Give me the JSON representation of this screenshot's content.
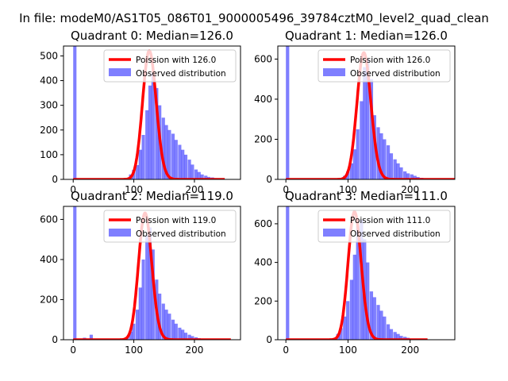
{
  "suptitle": "In file: modeM0/AS1T05_086T01_9000005496_39784cztM0_level2_quad_clean",
  "colors": {
    "poisson": "#ff0000",
    "observed": "#0000ff",
    "axis": "#000000"
  },
  "chart_data": [
    {
      "type": "bar",
      "title": "Quadrant 0: Median=126.0",
      "xlim": [
        -16,
        276
      ],
      "ylim": [
        0,
        540
      ],
      "xticks": [
        0,
        100,
        200
      ],
      "yticks": [
        0,
        100,
        200,
        300,
        400,
        500
      ],
      "legend_position": "upper right",
      "legend": [
        "Poission with 126.0",
        "Observed distribution"
      ],
      "bin_width": 5.4,
      "hist_bins": [
        [
          0,
          540
        ],
        [
          81,
          2
        ],
        [
          86,
          5
        ],
        [
          92,
          20
        ],
        [
          97,
          38
        ],
        [
          103,
          58
        ],
        [
          108,
          120
        ],
        [
          113,
          180
        ],
        [
          119,
          280
        ],
        [
          124,
          380
        ],
        [
          129,
          430
        ],
        [
          135,
          370
        ],
        [
          140,
          300
        ],
        [
          146,
          250
        ],
        [
          151,
          220
        ],
        [
          156,
          200
        ],
        [
          162,
          185
        ],
        [
          167,
          160
        ],
        [
          173,
          140
        ],
        [
          178,
          120
        ],
        [
          183,
          100
        ],
        [
          189,
          80
        ],
        [
          194,
          60
        ],
        [
          200,
          40
        ],
        [
          205,
          30
        ],
        [
          210,
          20
        ],
        [
          216,
          15
        ],
        [
          221,
          10
        ],
        [
          227,
          8
        ],
        [
          232,
          5
        ],
        [
          238,
          3
        ]
      ],
      "poisson": {
        "mu": 126.0,
        "scale": 521,
        "x_range": [
          0,
          250
        ]
      }
    },
    {
      "type": "bar",
      "title": "Quadrant 1: Median=126.0",
      "xlim": [
        -13,
        272
      ],
      "ylim": [
        0,
        665
      ],
      "xticks": [
        0,
        100,
        200
      ],
      "yticks": [
        0,
        200,
        400,
        600
      ],
      "legend_position": "upper right",
      "legend": [
        "Poission with 126.0",
        "Observed distribution"
      ],
      "bin_width": 5.4,
      "hist_bins": [
        [
          0,
          665
        ],
        [
          86,
          5
        ],
        [
          92,
          18
        ],
        [
          97,
          40
        ],
        [
          103,
          80
        ],
        [
          108,
          150
        ],
        [
          113,
          250
        ],
        [
          119,
          390
        ],
        [
          124,
          560
        ],
        [
          129,
          600
        ],
        [
          135,
          500
        ],
        [
          140,
          320
        ],
        [
          146,
          260
        ],
        [
          151,
          230
        ],
        [
          156,
          200
        ],
        [
          162,
          170
        ],
        [
          167,
          130
        ],
        [
          173,
          100
        ],
        [
          178,
          80
        ],
        [
          183,
          60
        ],
        [
          189,
          40
        ],
        [
          194,
          30
        ],
        [
          200,
          25
        ],
        [
          205,
          18
        ],
        [
          210,
          12
        ],
        [
          216,
          8
        ],
        [
          221,
          5
        ],
        [
          227,
          3
        ]
      ],
      "poisson": {
        "mu": 126.0,
        "scale": 632,
        "x_range": [
          0,
          272
        ]
      }
    },
    {
      "type": "bar",
      "title": "Quadrant 2: Median=119.0",
      "xlim": [
        -16,
        276
      ],
      "ylim": [
        0,
        665
      ],
      "xticks": [
        0,
        100,
        200
      ],
      "yticks": [
        0,
        200,
        400,
        600
      ],
      "legend_position": "upper right",
      "legend": [
        "Poission with 119.0",
        "Observed distribution"
      ],
      "bin_width": 5.4,
      "hist_bins": [
        [
          0,
          665
        ],
        [
          16,
          10
        ],
        [
          27,
          25
        ],
        [
          81,
          5
        ],
        [
          86,
          12
        ],
        [
          92,
          40
        ],
        [
          97,
          80
        ],
        [
          103,
          150
        ],
        [
          108,
          260
        ],
        [
          113,
          400
        ],
        [
          119,
          520
        ],
        [
          124,
          560
        ],
        [
          129,
          450
        ],
        [
          135,
          300
        ],
        [
          140,
          230
        ],
        [
          146,
          180
        ],
        [
          151,
          150
        ],
        [
          156,
          130
        ],
        [
          162,
          100
        ],
        [
          167,
          80
        ],
        [
          173,
          60
        ],
        [
          178,
          50
        ],
        [
          183,
          35
        ],
        [
          189,
          25
        ],
        [
          194,
          18
        ],
        [
          200,
          12
        ],
        [
          205,
          8
        ],
        [
          210,
          5
        ],
        [
          216,
          3
        ]
      ],
      "poisson": {
        "mu": 119.0,
        "scale": 632,
        "x_range": [
          0,
          260
        ]
      }
    },
    {
      "type": "bar",
      "title": "Quadrant 3: Median=111.0",
      "xlim": [
        -13,
        272
      ],
      "ylim": [
        0,
        690
      ],
      "xticks": [
        0,
        100,
        200
      ],
      "yticks": [
        0,
        200,
        400,
        600
      ],
      "legend_position": "upper right",
      "legend": [
        "Poission with 111.0",
        "Observed distribution"
      ],
      "bin_width": 5.4,
      "hist_bins": [
        [
          0,
          690
        ],
        [
          70,
          4
        ],
        [
          76,
          10
        ],
        [
          81,
          30
        ],
        [
          86,
          60
        ],
        [
          92,
          120
        ],
        [
          97,
          200
        ],
        [
          103,
          310
        ],
        [
          108,
          440
        ],
        [
          113,
          590
        ],
        [
          119,
          620
        ],
        [
          124,
          520
        ],
        [
          129,
          400
        ],
        [
          135,
          250
        ],
        [
          140,
          220
        ],
        [
          146,
          180
        ],
        [
          151,
          150
        ],
        [
          156,
          120
        ],
        [
          162,
          80
        ],
        [
          167,
          55
        ],
        [
          173,
          40
        ],
        [
          178,
          30
        ],
        [
          183,
          20
        ],
        [
          189,
          15
        ],
        [
          194,
          10
        ],
        [
          200,
          6
        ],
        [
          205,
          4
        ],
        [
          210,
          2
        ]
      ],
      "poisson": {
        "mu": 111.0,
        "scale": 662,
        "x_range": [
          0,
          228
        ]
      }
    }
  ]
}
